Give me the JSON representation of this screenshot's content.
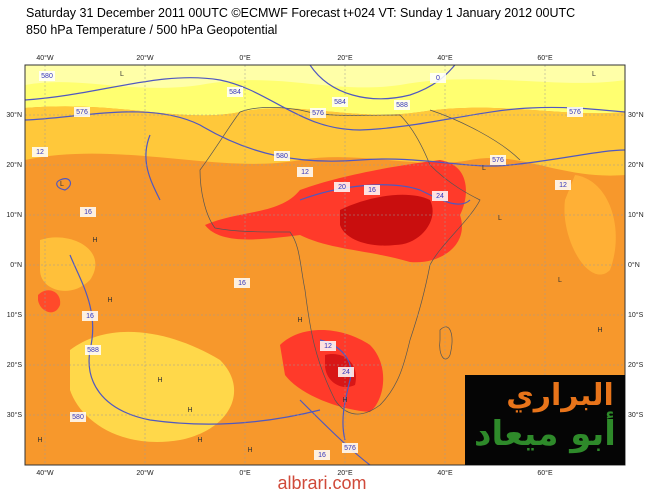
{
  "header": {
    "line1": "Saturday 31 December 2011 00UTC ©ECMWF Forecast t+024 VT: Sunday 1 January 2012 00UTC",
    "line2": "850 hPa Temperature / 500 hPa Geopotential"
  },
  "map": {
    "lon_labels": [
      "40°W",
      "20°W",
      "0°E",
      "20°E",
      "40°E",
      "60°E"
    ],
    "lat_labels": [
      "30°N",
      "20°N",
      "10°N",
      "0°N",
      "10°S",
      "20°S",
      "30°S"
    ],
    "contour_labels": [
      "580",
      "584",
      "576",
      "584",
      "588",
      "0",
      "576",
      "576",
      "12",
      "580",
      "12",
      "16",
      "20",
      "16",
      "24",
      "12",
      "16",
      "576",
      "16",
      "24",
      "12",
      "588",
      "580",
      "576",
      "16"
    ],
    "pressure_marks": [
      "L",
      "L",
      "L",
      "L",
      "H",
      "H",
      "H",
      "H",
      "H",
      "H",
      "H",
      "H",
      "L",
      "L",
      "H",
      "H"
    ]
  },
  "watermark": {
    "line1": "البراري",
    "line2": "أبو ميعاد",
    "site": "albrari.com"
  }
}
